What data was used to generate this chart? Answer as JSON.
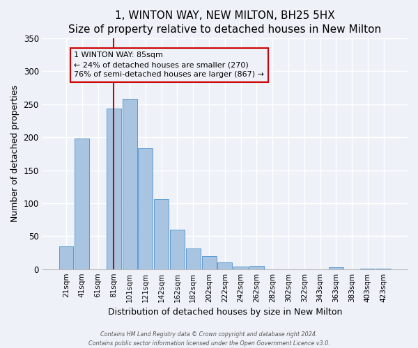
{
  "title": "1, WINTON WAY, NEW MILTON, BH25 5HX",
  "subtitle": "Size of property relative to detached houses in New Milton",
  "xlabel": "Distribution of detached houses by size in New Milton",
  "ylabel": "Number of detached properties",
  "bar_labels": [
    "21sqm",
    "41sqm",
    "61sqm",
    "81sqm",
    "101sqm",
    "121sqm",
    "142sqm",
    "162sqm",
    "182sqm",
    "202sqm",
    "222sqm",
    "242sqm",
    "262sqm",
    "282sqm",
    "302sqm",
    "322sqm",
    "343sqm",
    "363sqm",
    "383sqm",
    "403sqm",
    "423sqm"
  ],
  "bar_values": [
    35,
    198,
    0,
    243,
    258,
    183,
    106,
    60,
    31,
    20,
    10,
    4,
    5,
    0,
    0,
    0,
    0,
    3,
    0,
    1,
    1
  ],
  "bar_color": "#a8c4e0",
  "bar_edge_color": "#5b9bd5",
  "vline_x": 3,
  "vline_color": "#cc0000",
  "annotation_box_text": "1 WINTON WAY: 85sqm\n← 24% of detached houses are smaller (270)\n76% of semi-detached houses are larger (867) →",
  "annotation_box_edgecolor": "#cc0000",
  "ylim": [
    0,
    350
  ],
  "yticks": [
    0,
    50,
    100,
    150,
    200,
    250,
    300,
    350
  ],
  "background_color": "#eef2f8",
  "footer_line1": "Contains HM Land Registry data © Crown copyright and database right 2024.",
  "footer_line2": "Contains public sector information licensed under the Open Government Licence v3.0.",
  "title_fontsize": 11,
  "xlabel_fontsize": 9,
  "ylabel_fontsize": 9,
  "annot_fontsize": 8,
  "tick_fontsize": 7.5,
  "ytick_fontsize": 8.5,
  "footer_fontsize": 5.8
}
